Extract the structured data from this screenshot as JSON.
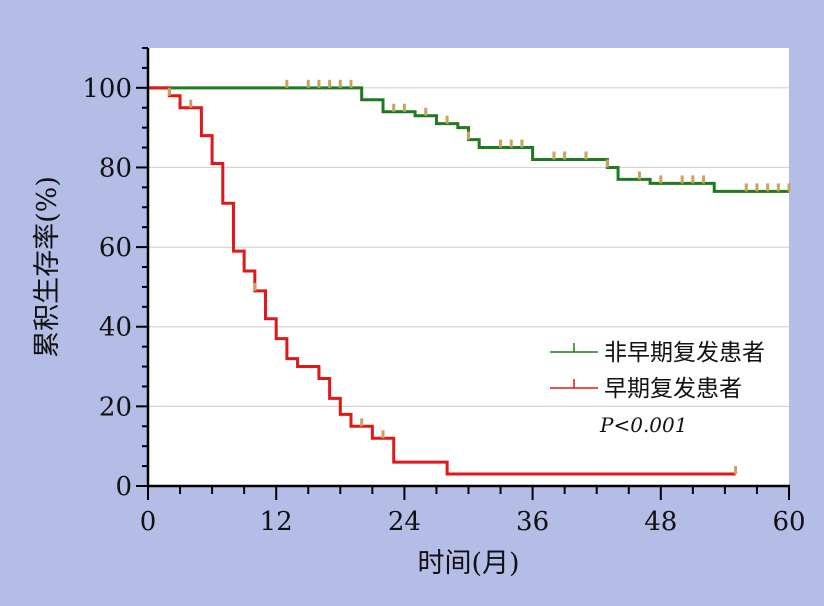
{
  "chart_data": {
    "type": "line",
    "chart_subtype": "kaplan-meier step",
    "xlabel": "时间(月)",
    "ylabel": "累积生存率(%)",
    "xlim": [
      0,
      60
    ],
    "ylim": [
      0,
      110
    ],
    "xticks": [
      0,
      12,
      24,
      36,
      48,
      60
    ],
    "yticks": [
      0,
      20,
      40,
      60,
      80,
      100
    ],
    "grid": "horizontal",
    "legend_position": "lower-right",
    "annotation": "P<0.001",
    "colors": {
      "background": "#b3bde6",
      "plot_background": "#ffffff",
      "censor": "#c9a25e"
    },
    "series": [
      {
        "name": "非早期复发患者",
        "color": "#1f7a1f",
        "steps": [
          [
            0,
            100
          ],
          [
            19,
            100
          ],
          [
            20,
            97
          ],
          [
            22,
            94
          ],
          [
            25,
            93
          ],
          [
            27,
            91
          ],
          [
            29,
            90
          ],
          [
            30,
            87
          ],
          [
            31,
            85
          ],
          [
            36,
            82
          ],
          [
            43,
            80
          ],
          [
            44,
            77
          ],
          [
            47,
            76
          ],
          [
            53,
            74
          ],
          [
            60,
            74
          ]
        ],
        "censored": [
          13,
          15,
          16,
          17,
          18,
          19,
          23,
          24,
          26,
          28,
          30,
          33,
          34,
          35,
          38,
          39,
          41,
          43,
          46,
          48,
          50,
          51,
          52,
          56,
          57,
          58,
          59,
          60
        ]
      },
      {
        "name": "早期复发患者",
        "color": "#e01818",
        "steps": [
          [
            0,
            100
          ],
          [
            2,
            98
          ],
          [
            3,
            95
          ],
          [
            5,
            88
          ],
          [
            6,
            81
          ],
          [
            7,
            71
          ],
          [
            8,
            59
          ],
          [
            9,
            54
          ],
          [
            10,
            49
          ],
          [
            11,
            42
          ],
          [
            12,
            37
          ],
          [
            13,
            32
          ],
          [
            14,
            30
          ],
          [
            16,
            27
          ],
          [
            17,
            22
          ],
          [
            18,
            18
          ],
          [
            19,
            15
          ],
          [
            21,
            12
          ],
          [
            23,
            6
          ],
          [
            28,
            3
          ],
          [
            55,
            3
          ]
        ],
        "censored": [
          2,
          4,
          10,
          20,
          22,
          55
        ]
      }
    ]
  }
}
